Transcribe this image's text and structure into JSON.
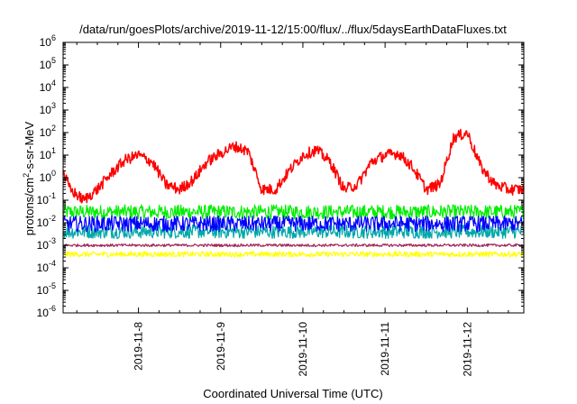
{
  "chart_data": {
    "type": "line",
    "title": "/data/run/goesPlots/archive/2019-11-12/15:00/flux/../flux/5daysEarthDataFluxes.txt",
    "xlabel": "Coordinated Universal Time (UTC)",
    "ylabel": "protons/cm²-s-sr-MeV",
    "ylabel_parts": {
      "pre": "protons/cm",
      "sup": "2",
      "post": "-s-sr-MeV"
    },
    "yscale": "log",
    "ylim": [
      1e-06,
      1000000.0
    ],
    "xlim": [
      "2019-11-07T02:00",
      "2019-11-12T16:30"
    ],
    "x_ticks": [
      "2019-11-8",
      "2019-11-9",
      "2019-11-10",
      "2019-11-11",
      "2019-11-12"
    ],
    "y_ticks": [
      {
        "base": "10",
        "exp": "6"
      },
      {
        "base": "10",
        "exp": "5"
      },
      {
        "base": "10",
        "exp": "4"
      },
      {
        "base": "10",
        "exp": "3"
      },
      {
        "base": "10",
        "exp": "2"
      },
      {
        "base": "10",
        "exp": "1"
      },
      {
        "base": "10",
        "exp": "0"
      },
      {
        "base": "10",
        "exp": "-1"
      },
      {
        "base": "10",
        "exp": "-2"
      },
      {
        "base": "10",
        "exp": "-3"
      },
      {
        "base": "10",
        "exp": "-4"
      },
      {
        "base": "10",
        "exp": "-5"
      },
      {
        "base": "10",
        "exp": "-6"
      }
    ],
    "grid": false,
    "legend": "none",
    "series": [
      {
        "color": "#ff0000",
        "style": "noisy",
        "x": [
          "2019-11-07T02:00",
          "2019-11-07T04:00",
          "2019-11-07T08:00",
          "2019-11-07T12:00",
          "2019-11-07T16:00",
          "2019-11-07T20:00",
          "2019-11-08T00:00",
          "2019-11-08T04:00",
          "2019-11-08T08:00",
          "2019-11-08T12:00",
          "2019-11-08T16:00",
          "2019-11-08T20:00",
          "2019-11-09T00:00",
          "2019-11-09T04:00",
          "2019-11-09T08:00",
          "2019-11-09T12:00",
          "2019-11-09T16:00",
          "2019-11-09T20:00",
          "2019-11-10T00:00",
          "2019-11-10T04:00",
          "2019-11-10T08:00",
          "2019-11-10T12:00",
          "2019-11-10T16:00",
          "2019-11-10T20:00",
          "2019-11-11T00:00",
          "2019-11-11T04:00",
          "2019-11-11T08:00",
          "2019-11-11T12:00",
          "2019-11-11T16:00",
          "2019-11-11T20:00",
          "2019-11-12T00:00",
          "2019-11-12T04:00",
          "2019-11-12T08:00",
          "2019-11-12T12:00",
          "2019-11-12T16:30"
        ],
        "y": [
          2,
          0.3,
          0.1,
          0.3,
          1.5,
          6,
          10,
          5,
          0.5,
          0.3,
          0.8,
          5,
          12,
          25,
          15,
          0.3,
          0.3,
          2,
          10,
          17,
          5,
          0.3,
          0.5,
          5,
          10,
          12,
          3,
          0.3,
          0.5,
          60,
          100,
          3,
          0.5,
          0.3,
          0.3
        ]
      },
      {
        "color": "#00ee00",
        "style": "noisy",
        "x": [
          "2019-11-07T02:00",
          "2019-11-12T16:30"
        ],
        "y": [
          0.03,
          0.03
        ]
      },
      {
        "color": "#00a8a8",
        "style": "noisy",
        "x": [
          "2019-11-07T02:00",
          "2019-11-12T16:30"
        ],
        "y": [
          0.004,
          0.004
        ]
      },
      {
        "color": "#ffff00",
        "style": "noisy",
        "x": [
          "2019-11-07T02:00",
          "2019-11-12T16:30"
        ],
        "y": [
          0.0004,
          0.0004
        ]
      },
      {
        "color": "#0000ff",
        "style": "noisy",
        "x": [
          "2019-11-07T02:00",
          "2019-11-12T16:30"
        ],
        "y": [
          0.009,
          0.009
        ]
      },
      {
        "color": "#a0285a",
        "style": "noisy",
        "x": [
          "2019-11-07T02:00",
          "2019-11-12T16:30"
        ],
        "y": [
          0.001,
          0.001
        ]
      }
    ]
  }
}
